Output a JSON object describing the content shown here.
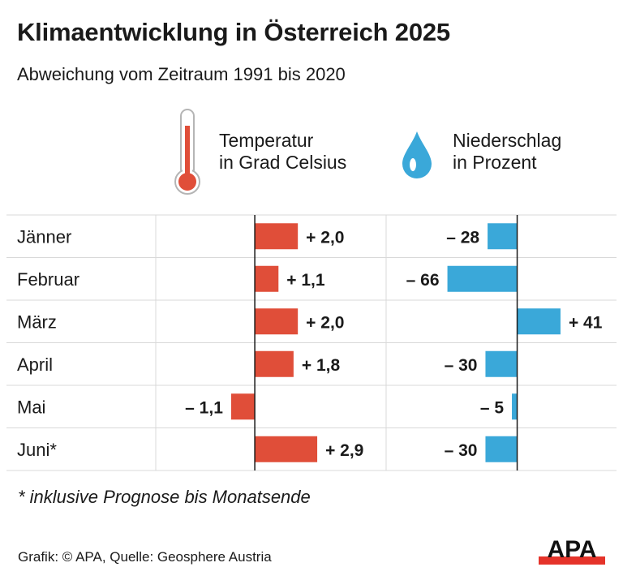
{
  "title": "Klimaentwicklung in Österreich 2025",
  "subtitle": "Abweichung vom Zeitraum 1991 bis 2020",
  "footnote": "* inklusive Prognose bis Monatsende",
  "source": "Grafik: © APA, Quelle: Geosphere Austria",
  "logo_text": "APA",
  "colors": {
    "temperature": "#e04e39",
    "precipitation": "#3aa8d9",
    "grid": "#d9d9d9",
    "axis": "#1a1a1a"
  },
  "legend": {
    "temperature": {
      "icon": "thermometer-icon",
      "text": "Temperatur\nin Grad Celsius"
    },
    "precipitation": {
      "icon": "water-drop-icon",
      "text": "Niederschlag\nin Prozent"
    }
  },
  "chart_data": {
    "type": "bar",
    "orientation": "horizontal",
    "categories": [
      "Jänner",
      "Februar",
      "März",
      "April",
      "Mai",
      "Juni*"
    ],
    "series": [
      {
        "name": "Temperatur in Grad Celsius",
        "values": [
          2.0,
          1.1,
          2.0,
          1.8,
          -1.1,
          2.9
        ],
        "labels": [
          "+ 2,0",
          "+ 1,1",
          "+ 2,0",
          "+ 1,8",
          "– 1,1",
          "+ 2,9"
        ],
        "xlim": [
          -4.6,
          6.1
        ]
      },
      {
        "name": "Niederschlag in Prozent",
        "values": [
          -28,
          -66,
          41,
          -30,
          -5,
          -30
        ],
        "labels": [
          "– 28",
          "– 66",
          "+ 41",
          "– 30",
          "– 5",
          "– 30"
        ],
        "xlim": [
          -124,
          94
        ]
      }
    ]
  }
}
